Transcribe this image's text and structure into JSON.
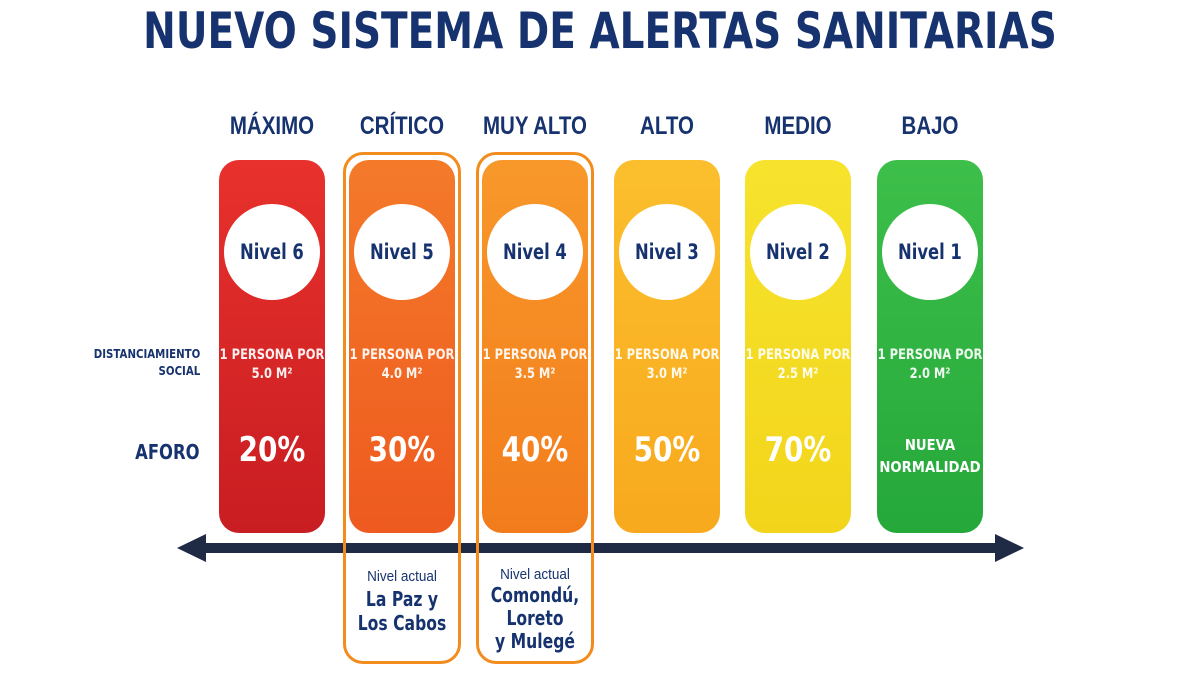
{
  "title": "NUEVO SISTEMA DE ALERTAS SANITARIAS",
  "row_labels": {
    "distanciamiento": [
      "DISTANCIAMIENTO",
      "SOCIAL"
    ],
    "aforo": "AFORO"
  },
  "levels": [
    {
      "category": "MÁXIMO",
      "nivel": "Nivel 6",
      "dist": [
        "1 PERSONA POR",
        "5.0 M²"
      ],
      "aforo": "20%",
      "color_top": "#e8312c",
      "color_bottom": "#c81d22"
    },
    {
      "category": "CRÍTICO",
      "nivel": "Nivel 5",
      "dist": [
        "1 PERSONA POR",
        "4.0 M²"
      ],
      "aforo": "30%",
      "color_top": "#f47a2a",
      "color_bottom": "#ee5a1f"
    },
    {
      "category": "MUY ALTO",
      "nivel": "Nivel 4",
      "dist": [
        "1 PERSONA POR",
        "3.5 M²"
      ],
      "aforo": "40%",
      "color_top": "#f8982a",
      "color_bottom": "#f27c1c"
    },
    {
      "category": "ALTO",
      "nivel": "Nivel 3",
      "dist": [
        "1 PERSONA POR",
        "3.0 M²"
      ],
      "aforo": "50%",
      "color_top": "#fbbf2d",
      "color_bottom": "#f8a91d"
    },
    {
      "category": "MEDIO",
      "nivel": "Nivel 2",
      "dist": [
        "1 PERSONA POR",
        "2.5 M²"
      ],
      "aforo": "70%",
      "color_top": "#f7e32d",
      "color_bottom": "#f2d51b"
    },
    {
      "category": "BAJO",
      "nivel": "Nivel 1",
      "dist": [
        "1 PERSONA POR",
        "2.0 M²"
      ],
      "aforo": [
        "NUEVA",
        "NORMALIDAD"
      ],
      "color_top": "#3dbf4a",
      "color_bottom": "#25a83a"
    }
  ],
  "current": [
    {
      "label": "Nivel actual",
      "places": [
        "La Paz y",
        "Los Cabos"
      ]
    },
    {
      "label": "Nivel actual",
      "places": [
        "Comondú,",
        "Loreto",
        "y Mulegé"
      ]
    }
  ],
  "colors": {
    "navy": "#17336f",
    "highlight": "#f28c1e",
    "arrow": "#1f2a44"
  }
}
